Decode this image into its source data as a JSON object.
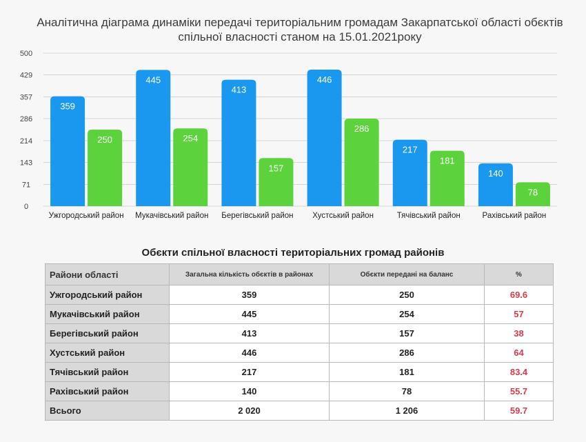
{
  "chart_data": {
    "type": "bar",
    "title": "Аналітична діаграма динаміки передачі територіальним громадам Закарпатської області обєктів спільної власності станом на 15.01.2021року",
    "categories": [
      "Ужгородський район",
      "Мукачівський район",
      "Берегівський район",
      "Хустський район",
      "Тячівський район",
      "Рахівський район"
    ],
    "series": [
      {
        "values": [
          359,
          445,
          413,
          446,
          217,
          140
        ]
      },
      {
        "values": [
          250,
          254,
          157,
          286,
          181,
          78
        ]
      }
    ],
    "colors": [
      "#1a98f0",
      "#5cd33c"
    ],
    "ylim": [
      0,
      500
    ],
    "yticks": [
      0,
      71,
      143,
      214,
      286,
      357,
      429,
      500
    ],
    "grid": true,
    "xlabel": "",
    "ylabel": ""
  },
  "table": {
    "title": "Обєкти спільної власності територіальних громад районів",
    "headers": [
      "Райони області",
      "Загальна кількість обєктів в районах",
      "Обєкти передані на баланс",
      "%"
    ],
    "rows": [
      [
        "Ужгородський район",
        "359",
        "250",
        "69.6"
      ],
      [
        "Мукачівський район",
        "445",
        "254",
        "57"
      ],
      [
        "Берегівський район",
        "413",
        "157",
        "38"
      ],
      [
        "Хустський район",
        "446",
        "286",
        "64"
      ],
      [
        "Тячівський район",
        "217",
        "181",
        "83.4"
      ],
      [
        "Рахівський район",
        "140",
        "78",
        "55.7"
      ],
      [
        "Всього",
        "2 020",
        "1 206",
        "59.7"
      ]
    ]
  }
}
